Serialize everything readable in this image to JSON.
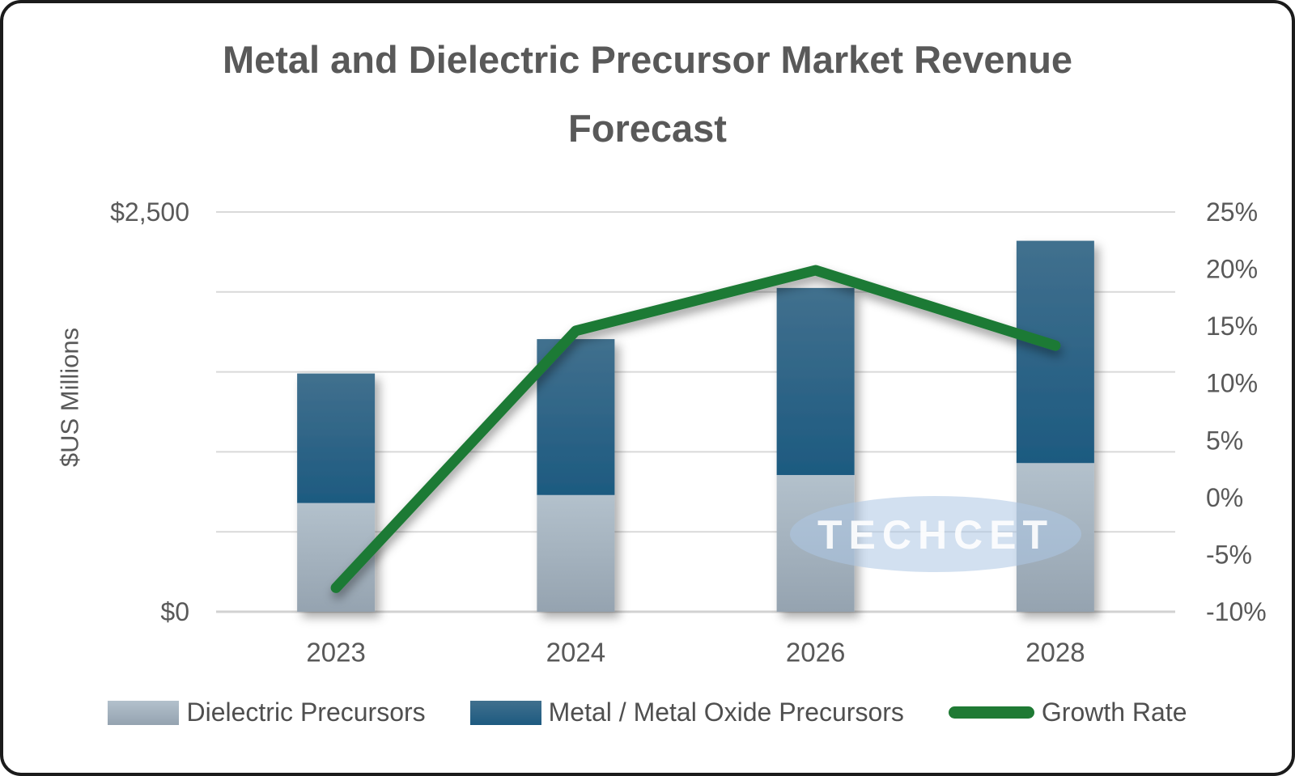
{
  "watermark": "TECHCET",
  "colors": {
    "dielectric_top": "#B3C1CC",
    "dielectric_bottom": "#95A3B0",
    "metal_top": "#41708E",
    "metal_bottom": "#1D5A80",
    "growth": "#1F7A34",
    "text": "#595959",
    "legend_text": "#4f4f4f",
    "gridline": "#D9D9D9",
    "baseline": "#D2D2D2",
    "watermark_fill": "#ADC7E3",
    "watermark_text": "#FFFFFF",
    "frame_border": "#1B1B1B",
    "background": "#FFFFFF"
  },
  "chart_data": {
    "type": "combo-stacked-bar-line",
    "title": "Metal and Dielectric Precursor Market Revenue Forecast",
    "categories": [
      "2023",
      "2024",
      "2026",
      "2028"
    ],
    "series": [
      {
        "name": "Dielectric Precursors",
        "type": "bar",
        "stack": "revenue",
        "axis": "left",
        "values": [
          680,
          730,
          855,
          930
        ]
      },
      {
        "name": "Metal / Metal Oxide Precursors",
        "type": "bar",
        "stack": "revenue",
        "axis": "left",
        "values": [
          810,
          975,
          1170,
          1390
        ]
      },
      {
        "name": "Growth Rate",
        "type": "line",
        "axis": "right",
        "values": [
          -7.9,
          14.6,
          19.9,
          13.3
        ]
      }
    ],
    "stacked_totals": [
      1490,
      1705,
      2025,
      2320
    ],
    "left_axis": {
      "label": "$US Millions",
      "range": [
        0,
        2500
      ],
      "ticks": [
        {
          "value": 2500,
          "label": "$2,500"
        },
        {
          "value": 0,
          "label": "$0"
        }
      ],
      "gridlines": [
        0,
        500,
        1000,
        1500,
        2000,
        2500
      ]
    },
    "right_axis": {
      "range": [
        -10,
        25
      ],
      "ticks": [
        {
          "value": 25,
          "label": "25%"
        },
        {
          "value": 20,
          "label": "20%"
        },
        {
          "value": 15,
          "label": "15%"
        },
        {
          "value": 10,
          "label": "10%"
        },
        {
          "value": 5,
          "label": "5%"
        },
        {
          "value": 0,
          "label": "0%"
        },
        {
          "value": -5,
          "label": "-5%"
        },
        {
          "value": -10,
          "label": "-10%"
        }
      ]
    },
    "grid": true,
    "legend_position": "bottom"
  }
}
